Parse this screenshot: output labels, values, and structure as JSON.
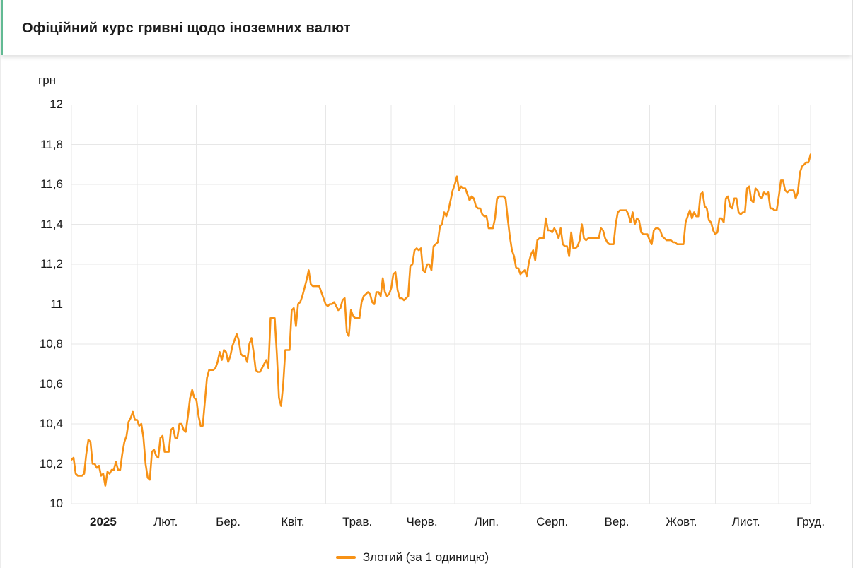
{
  "colors": {
    "line": "#f79216",
    "header_accent": "#62ba93",
    "grid": "#e7e7e7",
    "axis_text": "#1b1b1b"
  },
  "chart_data": {
    "type": "line",
    "title": "Офіційний курс гривні щодо іноземних валют",
    "ylabel": "грн",
    "ylim": [
      10,
      12
    ],
    "y_tick_step": 0.2,
    "y_tick_labels": [
      "12",
      "11,8",
      "11,6",
      "11,4",
      "11,2",
      "11",
      "10,8",
      "10,6",
      "10,4",
      "10,2",
      "10"
    ],
    "grid": true,
    "legend_position": "bottom",
    "line_color": "#f79216",
    "x_unit": "day_of_year_2025",
    "last_day": 350,
    "x_months": [
      {
        "label": "2025",
        "start_day": 1,
        "end_day": 31,
        "bold": true
      },
      {
        "label": "Лют.",
        "start_day": 32,
        "end_day": 59,
        "bold": false
      },
      {
        "label": "Бер.",
        "start_day": 60,
        "end_day": 90,
        "bold": false
      },
      {
        "label": "Квіт.",
        "start_day": 91,
        "end_day": 120,
        "bold": false
      },
      {
        "label": "Трав.",
        "start_day": 121,
        "end_day": 151,
        "bold": false
      },
      {
        "label": "Черв.",
        "start_day": 152,
        "end_day": 181,
        "bold": false
      },
      {
        "label": "Лип.",
        "start_day": 182,
        "end_day": 212,
        "bold": false
      },
      {
        "label": "Серп.",
        "start_day": 213,
        "end_day": 243,
        "bold": false
      },
      {
        "label": "Вер.",
        "start_day": 244,
        "end_day": 273,
        "bold": false
      },
      {
        "label": "Жовт.",
        "start_day": 274,
        "end_day": 304,
        "bold": false
      },
      {
        "label": "Лист.",
        "start_day": 305,
        "end_day": 334,
        "bold": false
      },
      {
        "label": "Груд.",
        "start_day": 335,
        "end_day": 365,
        "bold": false
      }
    ],
    "series": [
      {
        "name": "Злотий (за 1 одиницю)",
        "values": [
          10.22,
          10.23,
          10.15,
          10.14,
          10.14,
          10.14,
          10.15,
          10.25,
          10.32,
          10.31,
          10.2,
          10.2,
          10.18,
          10.19,
          10.14,
          10.15,
          10.09,
          10.16,
          10.15,
          10.17,
          10.17,
          10.21,
          10.17,
          10.17,
          10.25,
          10.31,
          10.34,
          10.41,
          10.43,
          10.46,
          10.42,
          10.42,
          10.39,
          10.4,
          10.33,
          10.2,
          10.13,
          10.12,
          10.26,
          10.27,
          10.24,
          10.23,
          10.33,
          10.34,
          10.26,
          10.26,
          10.26,
          10.37,
          10.38,
          10.33,
          10.33,
          10.4,
          10.4,
          10.37,
          10.36,
          10.44,
          10.53,
          10.57,
          10.53,
          10.52,
          10.44,
          10.39,
          10.39,
          10.51,
          10.63,
          10.67,
          10.67,
          10.67,
          10.68,
          10.71,
          10.76,
          10.72,
          10.77,
          10.76,
          10.71,
          10.74,
          10.79,
          10.82,
          10.85,
          10.82,
          10.75,
          10.74,
          10.74,
          10.71,
          10.8,
          10.83,
          10.76,
          10.67,
          10.66,
          10.66,
          10.68,
          10.7,
          10.72,
          10.68,
          10.93,
          10.93,
          10.93,
          10.75,
          10.53,
          10.49,
          10.6,
          10.77,
          10.77,
          10.77,
          10.97,
          10.98,
          10.89,
          11.0,
          11.01,
          11.04,
          11.08,
          11.12,
          11.17,
          11.1,
          11.09,
          11.09,
          11.09,
          11.09,
          11.06,
          11.03,
          11.0,
          10.99,
          11.0,
          11.0,
          11.01,
          10.99,
          10.97,
          10.98,
          11.02,
          11.03,
          10.86,
          10.84,
          10.97,
          10.94,
          10.93,
          10.93,
          10.93,
          11.01,
          11.04,
          11.05,
          11.06,
          11.05,
          11.01,
          11.0,
          11.06,
          11.06,
          11.04,
          11.13,
          11.06,
          11.04,
          11.05,
          11.08,
          11.15,
          11.16,
          11.07,
          11.03,
          11.03,
          11.02,
          11.03,
          11.04,
          11.19,
          11.2,
          11.27,
          11.28,
          11.27,
          11.28,
          11.17,
          11.16,
          11.2,
          11.2,
          11.17,
          11.29,
          11.3,
          11.31,
          11.39,
          11.4,
          11.46,
          11.44,
          11.47,
          11.52,
          11.57,
          11.6,
          11.64,
          11.57,
          11.59,
          11.58,
          11.58,
          11.55,
          11.52,
          11.54,
          11.53,
          11.49,
          11.48,
          11.48,
          11.45,
          11.44,
          11.44,
          11.38,
          11.38,
          11.38,
          11.43,
          11.53,
          11.54,
          11.54,
          11.54,
          11.53,
          11.43,
          11.34,
          11.27,
          11.24,
          11.18,
          11.18,
          11.15,
          11.16,
          11.17,
          11.14,
          11.21,
          11.25,
          11.27,
          11.22,
          11.32,
          11.33,
          11.33,
          11.33,
          11.43,
          11.37,
          11.37,
          11.36,
          11.38,
          11.36,
          11.33,
          11.38,
          11.3,
          11.29,
          11.29,
          11.24,
          11.36,
          11.28,
          11.28,
          11.29,
          11.32,
          11.4,
          11.33,
          11.32,
          11.33,
          11.33,
          11.33,
          11.33,
          11.33,
          11.33,
          11.38,
          11.37,
          11.33,
          11.31,
          11.3,
          11.3,
          11.3,
          11.4,
          11.46,
          11.47,
          11.47,
          11.47,
          11.47,
          11.45,
          11.41,
          11.46,
          11.4,
          11.43,
          11.42,
          11.36,
          11.35,
          11.35,
          11.35,
          11.32,
          11.3,
          11.37,
          11.38,
          11.38,
          11.37,
          11.34,
          11.33,
          11.32,
          11.32,
          11.32,
          11.31,
          11.31,
          11.3,
          11.3,
          11.3,
          11.3,
          11.41,
          11.44,
          11.47,
          11.43,
          11.46,
          11.44,
          11.44,
          11.55,
          11.56,
          11.49,
          11.48,
          11.42,
          11.41,
          11.37,
          11.35,
          11.36,
          11.43,
          11.43,
          11.41,
          11.53,
          11.54,
          11.49,
          11.48,
          11.53,
          11.53,
          11.46,
          11.45,
          11.46,
          11.46,
          11.58,
          11.59,
          11.52,
          11.51,
          11.58,
          11.57,
          11.54,
          11.53,
          11.56,
          11.55,
          11.56,
          11.48,
          11.48,
          11.47,
          11.47,
          11.54,
          11.62,
          11.62,
          11.57,
          11.56,
          11.57,
          11.57,
          11.57,
          11.53,
          11.56,
          11.66,
          11.69,
          11.7,
          11.71,
          11.71,
          11.75
        ]
      }
    ]
  }
}
